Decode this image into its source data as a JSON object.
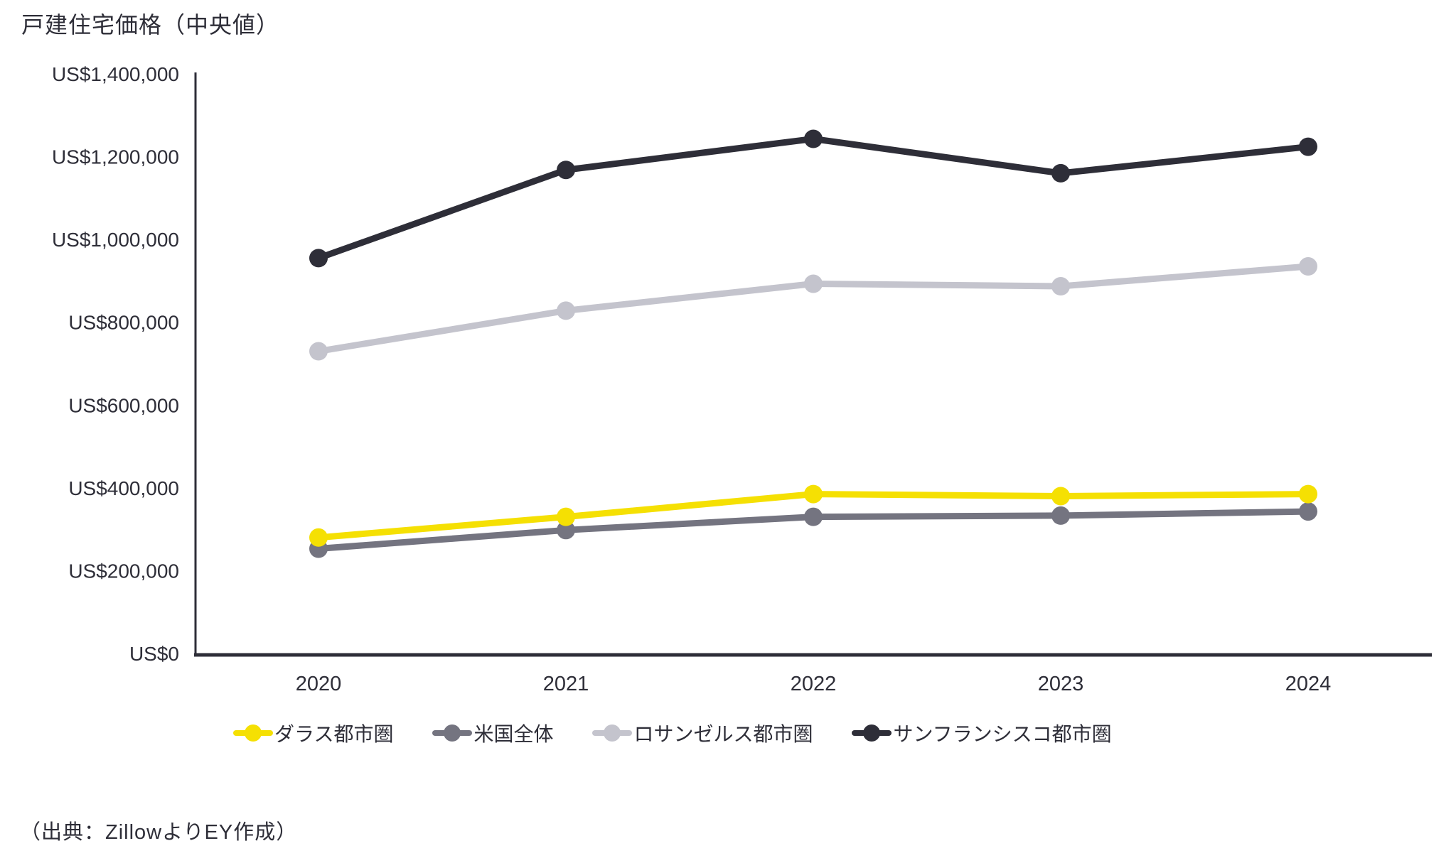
{
  "title": "戸建住宅価格（中央値）",
  "source": "（出典：ZillowよりEY作成）",
  "colors": {
    "text": "#2E2E38",
    "axis": "#2E2E38",
    "background": "#ffffff"
  },
  "chart_data": {
    "type": "line",
    "x": [
      "2020",
      "2021",
      "2022",
      "2023",
      "2024"
    ],
    "series": [
      {
        "name": "ダラス都市圏",
        "color": "#F5E003",
        "values": [
          280000,
          330000,
          385000,
          380000,
          385000
        ]
      },
      {
        "name": "米国全体",
        "color": "#747480",
        "values": [
          253000,
          298000,
          330000,
          333000,
          343000
        ]
      },
      {
        "name": "ロサンゼルス都市圏",
        "color": "#C4C4CD",
        "values": [
          730000,
          828000,
          893000,
          887000,
          935000
        ]
      },
      {
        "name": "サンフランシスコ都市圏",
        "color": "#2E2E38",
        "values": [
          955000,
          1168000,
          1243000,
          1160000,
          1224000
        ]
      }
    ],
    "ylim": [
      0,
      1400000
    ],
    "ytick_step": 200000,
    "ytick_labels": [
      "US$0",
      "US$200,000",
      "US$400,000",
      "US$600,000",
      "US$800,000",
      "US$1,000,000",
      "US$1,200,000",
      "US$1,400,000"
    ],
    "xlabel": "",
    "ylabel": "",
    "grid": false,
    "legend_position": "bottom"
  }
}
